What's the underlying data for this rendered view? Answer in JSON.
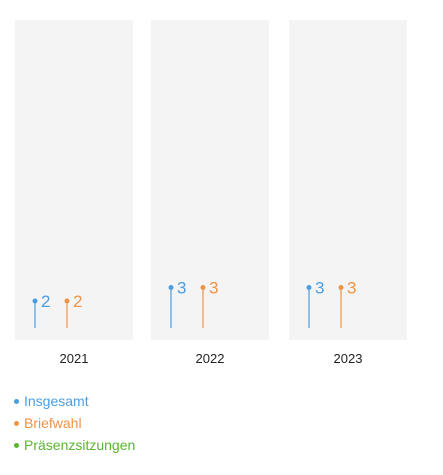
{
  "chart_data": {
    "type": "lollipop",
    "categories": [
      "2021",
      "2022",
      "2023"
    ],
    "series": [
      {
        "name": "Insgesamt",
        "color": "#4a9ee0",
        "values": [
          2,
          3,
          3
        ]
      },
      {
        "name": "Briefwahl",
        "color": "#ef9344",
        "values": [
          2,
          3,
          3
        ]
      },
      {
        "name": "Präsenzsitzungen",
        "color": "#5ab52f",
        "values": [
          0,
          0,
          0
        ]
      }
    ],
    "ylim": [
      0,
      12
    ],
    "legend_position": "bottom-left"
  }
}
